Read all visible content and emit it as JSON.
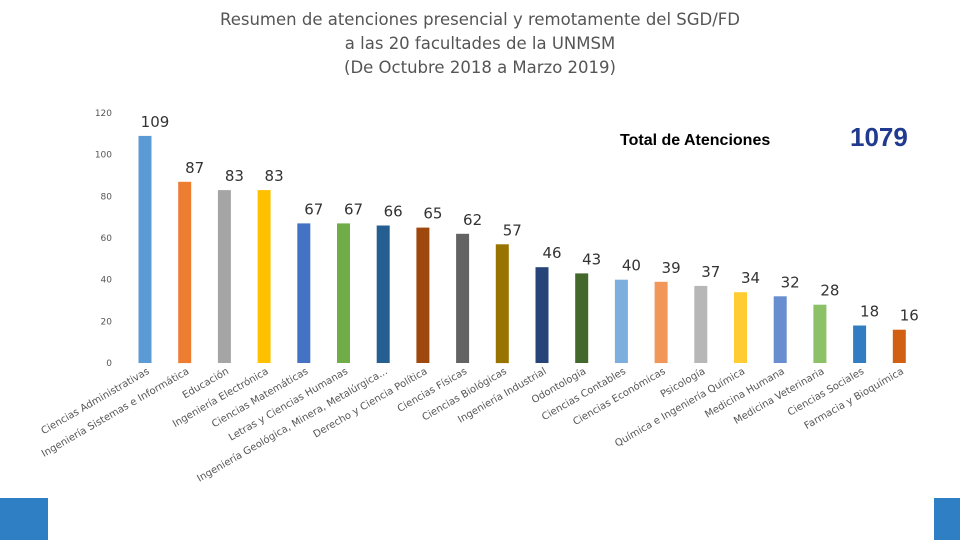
{
  "title_lines": [
    "Resumen de atenciones presencial y remotamente del SGD/FD",
    "a las 20 facultades de la UNMSM",
    "(De Octubre 2018 a Marzo 2019)"
  ],
  "total": {
    "label": "Total de Atenciones",
    "value": "1079",
    "color": "#1f3a8f"
  },
  "chart_data": {
    "type": "bar",
    "title": "Resumen de atenciones presencial y remotamente del SGD/FD a las 20 facultades de la UNMSM (De Octubre 2018 a Marzo 2019)",
    "categories": [
      "Ciencias Administrativas",
      "Ingeniería Sistemas e Informática",
      "Educación",
      "Ingeniería Electrónica",
      "Ciencias Matemáticas",
      "Letras y Ciencias Humanas",
      "Ingeniería Geológica, Minera, Metalúrgica...",
      "Derecho y Ciencia Política",
      "Ciencias Físicas",
      "Ciencias Biológicas",
      "Ingeniería Industrial",
      "Odontología",
      "Ciencias Contables",
      "Ciencias Económicas",
      "Psicología",
      "Química e Ingeniería Química",
      "Medicina Humana",
      "Medicina Veterinaria",
      "Ciencias Sociales",
      "Farmacia y Bioquímica"
    ],
    "values": [
      109,
      87,
      83,
      83,
      67,
      67,
      66,
      65,
      62,
      57,
      46,
      43,
      40,
      39,
      37,
      34,
      32,
      28,
      18,
      16
    ],
    "colors": [
      "#5b9bd5",
      "#ed7d31",
      "#a5a5a5",
      "#ffc000",
      "#4472c4",
      "#70ad47",
      "#255e91",
      "#9e480e",
      "#636363",
      "#997300",
      "#264478",
      "#43682b",
      "#7cafdd",
      "#f1975a",
      "#b7b7b7",
      "#ffcd33",
      "#698ed0",
      "#8cc168",
      "#327dc2",
      "#d26012"
    ],
    "ylim": [
      0,
      120
    ],
    "yticks": [
      0,
      20,
      40,
      60,
      80,
      100,
      120
    ],
    "grid": false,
    "legend": "none"
  }
}
